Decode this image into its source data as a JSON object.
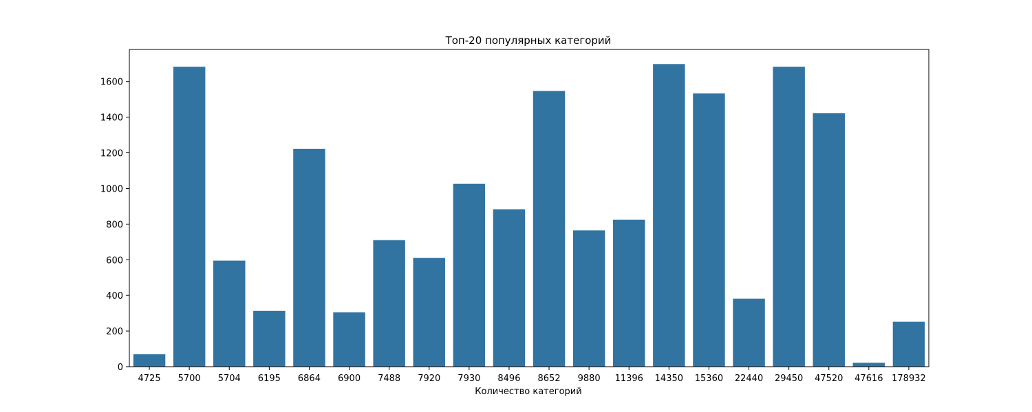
{
  "chart_data": {
    "type": "bar",
    "title": "Топ-20 популярных категорий",
    "xlabel": "Количество категорий",
    "ylabel": "",
    "categories": [
      "4725",
      "5700",
      "5704",
      "6195",
      "6864",
      "6900",
      "7488",
      "7920",
      "7930",
      "8496",
      "8652",
      "9880",
      "11396",
      "14350",
      "15360",
      "22440",
      "29450",
      "47520",
      "47616",
      "178932"
    ],
    "values": [
      70,
      1683,
      595,
      313,
      1222,
      305,
      710,
      610,
      1026,
      883,
      1547,
      765,
      825,
      1698,
      1533,
      382,
      1683,
      1422,
      22,
      252
    ],
    "ylim": [
      0,
      1780
    ],
    "yticks": [
      0,
      200,
      400,
      600,
      800,
      1000,
      1200,
      1400,
      1600
    ],
    "grid": false,
    "bar_color": "#3274a1"
  }
}
